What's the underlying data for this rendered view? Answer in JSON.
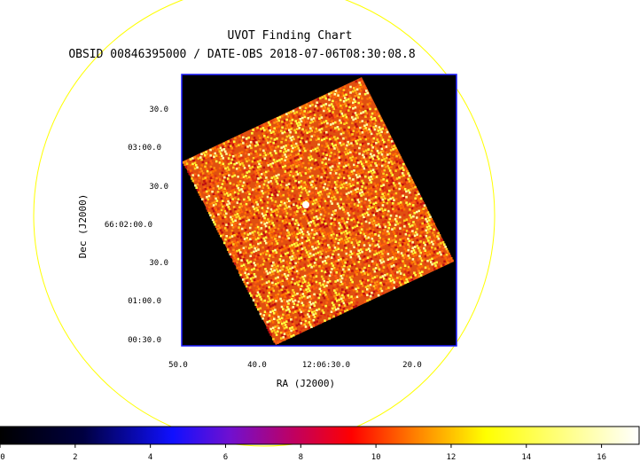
{
  "title": "UVOT Finding Chart",
  "subtitle": "OBSID 00846395000 / DATE-OBS 2018-07-06T08:30:08.8",
  "axes": {
    "ylabel": "Dec (J2000)",
    "xlabel": "RA (J2000)",
    "yticks": [
      "30.0",
      "03:00.0",
      "30.0",
      "66:02:00.0",
      "30.0",
      "01:00.0",
      "00:30.0"
    ],
    "xticks": [
      "50.0",
      "40.0",
      "12:06:30.0",
      "20.0"
    ]
  },
  "colorbar": {
    "min": 0,
    "max": 17,
    "ticks": [
      "0",
      "2",
      "4",
      "6",
      "8",
      "10",
      "12",
      "14",
      "16"
    ]
  },
  "colors": {
    "circle": "#ffff00",
    "frame": "#1a1aff",
    "background": "#000000"
  }
}
